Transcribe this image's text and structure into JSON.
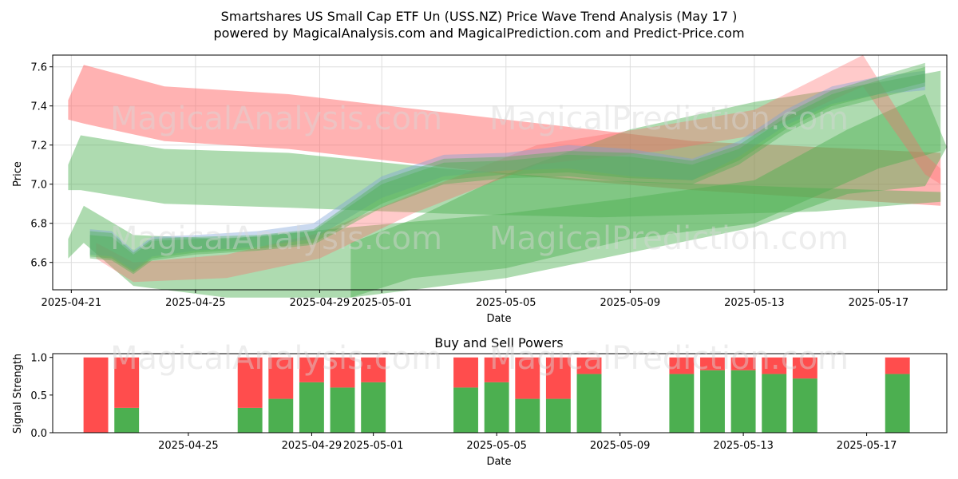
{
  "title_line1": "Smartshares US Small Cap ETF Un (USS.NZ) Price Wave Trend Analysis (May 17 )",
  "title_line2": "powered by MagicalAnalysis.com and MagicalPrediction.com and Predict-Price.com",
  "watermarks": [
    "MagicalAnalysis.com",
    "MagicalPrediction.com"
  ],
  "colors": {
    "buy": "#4caf50",
    "sell": "#ff4d4d",
    "band_green": "#4caf50",
    "band_red": "#ff6666",
    "band_blue": "#7b9fd6",
    "grid": "#dddddd"
  },
  "chart_data": [
    {
      "type": "area",
      "title": "",
      "xlabel": "Date",
      "ylabel": "Price",
      "x_start": "2025-04-21",
      "xlim_days": [
        -0.6,
        28.2
      ],
      "ylim": [
        6.46,
        7.66
      ],
      "grid": true,
      "xticks": [
        {
          "day": 0,
          "label": "2025-04-21"
        },
        {
          "day": 4,
          "label": "2025-04-25"
        },
        {
          "day": 8,
          "label": "2025-04-29"
        },
        {
          "day": 10,
          "label": "2025-05-01"
        },
        {
          "day": 14,
          "label": "2025-05-05"
        },
        {
          "day": 18,
          "label": "2025-05-09"
        },
        {
          "day": 22,
          "label": "2025-05-13"
        },
        {
          "day": 26,
          "label": "2025-05-17"
        }
      ],
      "yticks": [
        6.6,
        6.8,
        7.0,
        7.2,
        7.4,
        7.6
      ],
      "bands": [
        {
          "name": "red-wave-1",
          "color": "red",
          "opacity": 0.5,
          "days": [
            -0.1,
            0.4,
            3,
            7,
            14,
            20,
            28
          ],
          "upper": [
            7.43,
            7.61,
            7.5,
            7.46,
            7.33,
            7.22,
            7.16
          ],
          "lower": [
            7.33,
            7.31,
            7.22,
            7.18,
            7.05,
            6.97,
            6.89
          ]
        },
        {
          "name": "green-wave-1",
          "color": "green",
          "opacity": 0.45,
          "days": [
            -0.1,
            0.3,
            3,
            7,
            12,
            17,
            24,
            28
          ],
          "upper": [
            7.1,
            7.25,
            7.18,
            7.16,
            7.08,
            7.02,
            6.98,
            6.96
          ],
          "lower": [
            6.97,
            6.97,
            6.9,
            6.88,
            6.85,
            6.83,
            6.86,
            6.91
          ]
        },
        {
          "name": "green-wave-2",
          "color": "green",
          "opacity": 0.45,
          "days": [
            -0.1,
            0.4,
            2,
            5,
            9,
            14,
            18,
            22,
            25,
            27.5,
            28.2
          ],
          "upper": [
            6.72,
            6.89,
            6.74,
            6.72,
            6.78,
            6.85,
            6.93,
            7.02,
            7.28,
            7.46,
            7.19
          ],
          "lower": [
            6.62,
            6.7,
            6.48,
            6.42,
            6.42,
            6.52,
            6.65,
            6.78,
            6.95,
            6.99,
            7.19
          ]
        },
        {
          "name": "green-wave-3",
          "color": "green",
          "opacity": 0.45,
          "days": [
            9,
            11,
            14,
            18,
            22,
            26,
            28
          ],
          "upper": [
            6.7,
            6.82,
            7.05,
            7.28,
            7.42,
            7.52,
            7.58
          ],
          "lower": [
            6.42,
            6.52,
            6.57,
            6.72,
            6.8,
            7.08,
            7.17
          ]
        },
        {
          "name": "red-wave-2",
          "color": "red",
          "opacity": 0.35,
          "days": [
            0.8,
            2,
            5,
            8,
            11,
            15,
            19,
            22,
            25.5,
            27.5,
            28
          ],
          "upper": [
            6.7,
            6.6,
            6.64,
            6.75,
            6.95,
            7.2,
            7.3,
            7.38,
            7.66,
            7.15,
            7.08
          ],
          "lower": [
            6.62,
            6.5,
            6.52,
            6.62,
            6.85,
            7.1,
            7.17,
            7.25,
            7.5,
            7.05,
            7.0
          ]
        },
        {
          "name": "price-wave-1",
          "color": "blue",
          "opacity": 0.4,
          "days": [
            0.6,
            1.3,
            2,
            2.6,
            4,
            6,
            7.8,
            10,
            12,
            14,
            16,
            18,
            20,
            21.5,
            23,
            24.5,
            26,
            27.5
          ],
          "upper": [
            6.77,
            6.76,
            6.66,
            6.73,
            6.74,
            6.76,
            6.8,
            7.04,
            7.15,
            7.16,
            7.2,
            7.18,
            7.13,
            7.22,
            7.38,
            7.5,
            7.55,
            7.58
          ],
          "lower": [
            6.64,
            6.63,
            6.56,
            6.63,
            6.66,
            6.68,
            6.72,
            6.93,
            7.04,
            7.07,
            7.08,
            7.04,
            7.02,
            7.14,
            7.3,
            7.41,
            7.46,
            7.48
          ]
        },
        {
          "name": "price-wave-2",
          "color": "green",
          "opacity": 0.4,
          "days": [
            0.6,
            1.3,
            2,
            2.6,
            4,
            6,
            7.8,
            10,
            12,
            14,
            16,
            18,
            20,
            21.5,
            23,
            24.5,
            26,
            27.5
          ],
          "upper": [
            6.76,
            6.75,
            6.65,
            6.72,
            6.73,
            6.74,
            6.77,
            7.02,
            7.13,
            7.14,
            7.17,
            7.16,
            7.12,
            7.2,
            7.36,
            7.48,
            7.55,
            7.62
          ],
          "lower": [
            6.63,
            6.62,
            6.55,
            6.62,
            6.65,
            6.67,
            6.7,
            6.9,
            7.02,
            7.05,
            7.06,
            7.03,
            7.02,
            7.12,
            7.28,
            7.4,
            7.46,
            7.52
          ]
        },
        {
          "name": "price-wave-3",
          "color": "green",
          "opacity": 0.4,
          "days": [
            0.6,
            1.3,
            2,
            2.6,
            4,
            6,
            7.8,
            10,
            12,
            14,
            16,
            18,
            20,
            21.5,
            23,
            24.5,
            26,
            27.5
          ],
          "upper": [
            6.74,
            6.73,
            6.64,
            6.71,
            6.72,
            6.73,
            6.76,
            7.0,
            7.11,
            7.12,
            7.15,
            7.14,
            7.1,
            7.18,
            7.34,
            7.46,
            7.53,
            7.6
          ],
          "lower": [
            6.62,
            6.61,
            6.54,
            6.61,
            6.64,
            6.66,
            6.69,
            6.88,
            7.0,
            7.03,
            7.04,
            7.01,
            7.0,
            7.1,
            7.26,
            7.38,
            7.44,
            7.5
          ]
        }
      ]
    },
    {
      "type": "bar",
      "title": "Buy and Sell Powers",
      "xlabel": "Date",
      "ylabel": "Signal Strength",
      "x_start": "2025-04-21",
      "xlim_days": [
        -0.4,
        28.6
      ],
      "ylim": [
        0,
        1.05
      ],
      "yticks": [
        0.0,
        0.5,
        1.0
      ],
      "xticks": [
        {
          "day": 4,
          "label": "2025-04-25"
        },
        {
          "day": 8,
          "label": "2025-04-29"
        },
        {
          "day": 10,
          "label": "2025-05-01"
        },
        {
          "day": 14,
          "label": "2025-05-05"
        },
        {
          "day": 18,
          "label": "2025-05-09"
        },
        {
          "day": 22,
          "label": "2025-05-13"
        },
        {
          "day": 26,
          "label": "2025-05-17"
        }
      ],
      "series": [
        {
          "name": "Buy",
          "color": "buy"
        },
        {
          "name": "Sell",
          "color": "sell"
        }
      ],
      "bars": [
        {
          "day": 1,
          "buy": 0.0
        },
        {
          "day": 2,
          "buy": 0.33
        },
        {
          "day": 6,
          "buy": 0.33
        },
        {
          "day": 7,
          "buy": 0.45
        },
        {
          "day": 8,
          "buy": 0.67
        },
        {
          "day": 9,
          "buy": 0.6
        },
        {
          "day": 10,
          "buy": 0.67
        },
        {
          "day": 13,
          "buy": 0.6
        },
        {
          "day": 14,
          "buy": 0.67
        },
        {
          "day": 15,
          "buy": 0.45
        },
        {
          "day": 16,
          "buy": 0.45
        },
        {
          "day": 17,
          "buy": 0.78
        },
        {
          "day": 20,
          "buy": 0.78
        },
        {
          "day": 21,
          "buy": 0.83
        },
        {
          "day": 22,
          "buy": 0.83
        },
        {
          "day": 23,
          "buy": 0.78
        },
        {
          "day": 24,
          "buy": 0.72
        },
        {
          "day": 27,
          "buy": 0.78
        }
      ]
    }
  ]
}
